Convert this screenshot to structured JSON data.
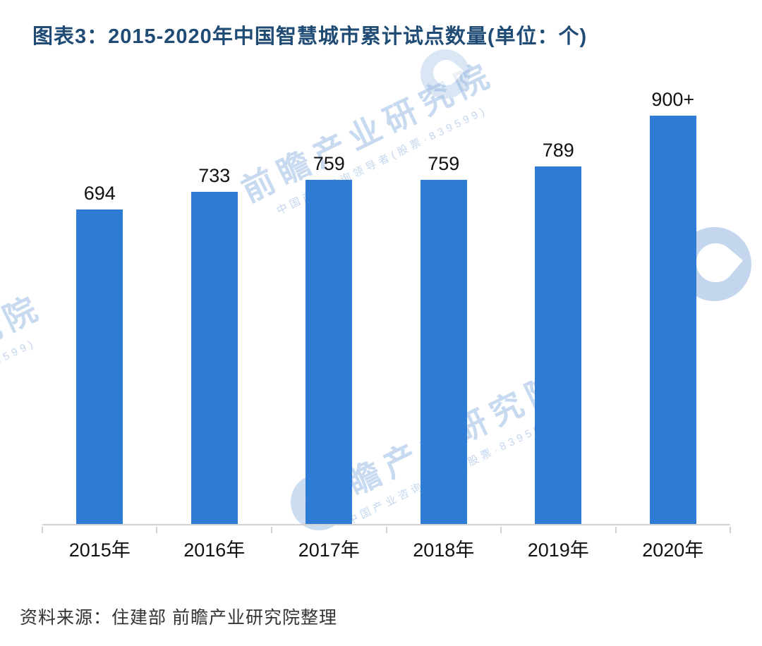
{
  "title": "图表3：2015-2020年中国智慧城市累计试点数量(单位：个)",
  "source": "资料来源：住建部 前瞻产业研究院整理",
  "watermark": {
    "brand": "前瞻产业研究院",
    "tagline": "中国产业咨询领导者(股票·839599)"
  },
  "colors": {
    "bar": "#2e7cd6",
    "title": "#1f4b74",
    "axis": "#d2d2d2",
    "text": "#111111",
    "source": "#333333",
    "watermark": "#92b5e0"
  },
  "chart_data": {
    "type": "bar",
    "title": "图表3：2015-2020年中国智慧城市累计试点数量(单位：个)",
    "categories": [
      "2015年",
      "2016年",
      "2017年",
      "2018年",
      "2019年",
      "2020年"
    ],
    "values": [
      694,
      733,
      759,
      759,
      789,
      900
    ],
    "value_labels": [
      "694",
      "733",
      "759",
      "759",
      "789",
      "900+"
    ],
    "xlabel": "",
    "ylabel": "",
    "ylim": [
      0,
      1000
    ],
    "grid": false,
    "legend": null,
    "bar_color": "#2e7cd6"
  }
}
